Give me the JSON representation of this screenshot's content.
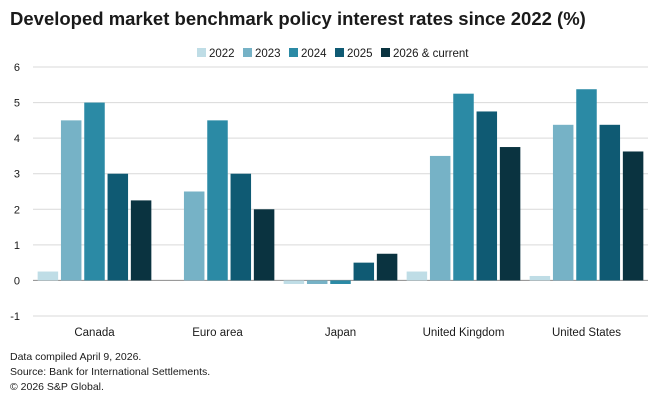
{
  "chart_data": {
    "type": "bar",
    "title": "Developed market benchmark policy interest rates since 2022 (%)",
    "xlabel": "",
    "ylabel": "",
    "ylim": [
      -1,
      6
    ],
    "yticks": [
      "-1",
      "0",
      "1",
      "2",
      "3",
      "4",
      "5",
      "6"
    ],
    "categories": [
      "Canada",
      "Euro area",
      "Japan",
      "United Kingdom",
      "United States"
    ],
    "series": [
      {
        "name": "2022",
        "color": "#bfdde6",
        "values": [
          0.25,
          0,
          -0.1,
          0.25,
          0.125
        ]
      },
      {
        "name": "2023",
        "color": "#76b2c6",
        "values": [
          4.5,
          2.5,
          -0.1,
          3.5,
          4.375
        ]
      },
      {
        "name": "2024",
        "color": "#2b8aa5",
        "values": [
          5.0,
          4.5,
          -0.1,
          5.25,
          5.375
        ]
      },
      {
        "name": "2025",
        "color": "#0f5a73",
        "values": [
          3.0,
          3.0,
          0.5,
          4.75,
          4.375
        ]
      },
      {
        "name": "2026 & current",
        "color": "#0a3340",
        "values": [
          2.25,
          2.0,
          0.75,
          3.75,
          3.625
        ]
      }
    ],
    "grid": true,
    "legend": "top-right"
  },
  "footer": {
    "compiled": "Data compiled April 9, 2026.",
    "source": "Source: Bank for International Settlements.",
    "copyright": "© 2026 S&P Global."
  }
}
